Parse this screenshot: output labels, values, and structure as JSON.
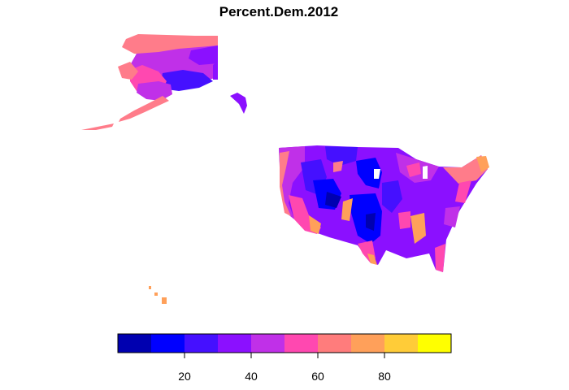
{
  "map": {
    "title": "Percent.Dem.2012",
    "palette": [
      "#0000b0",
      "#0000ff",
      "#4510ff",
      "#8b10ff",
      "#c030e8",
      "#ff48b0",
      "#ff7c7c",
      "#ffa05a",
      "#ffcc38",
      "#ffff00"
    ],
    "legend": {
      "range": [
        0,
        100
      ],
      "tick_values": [
        20,
        40,
        60,
        80
      ],
      "tick_labels": [
        "20",
        "40",
        "60",
        "80"
      ]
    }
  }
}
